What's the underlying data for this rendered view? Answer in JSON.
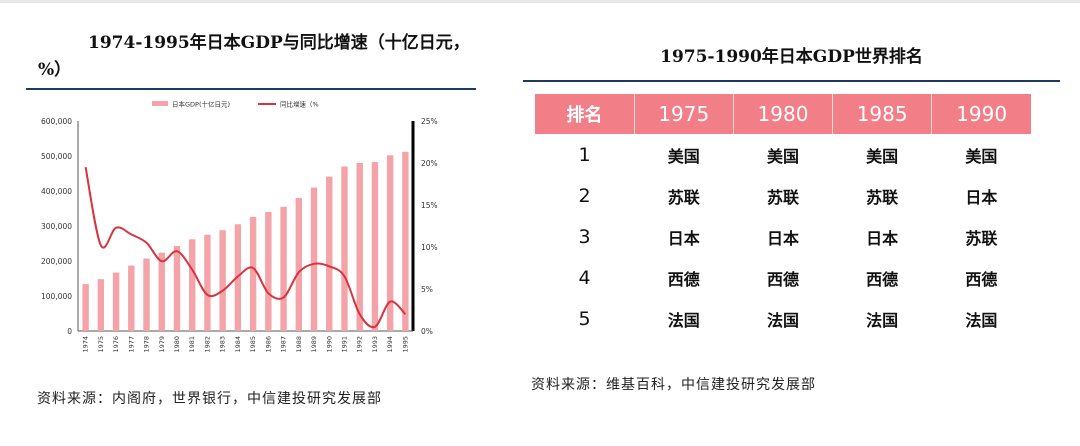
{
  "left_panel": {
    "title_line1": "1974-1995年日本GDP与同比增速（十亿日元，",
    "title_line2": "%）",
    "source": "资料来源：内阁府，世界银行，中信建投研究发展部"
  },
  "right_panel": {
    "title": "1975-1990年日本GDP世界排名",
    "header": [
      "排名",
      "1975",
      "1980",
      "1985",
      "1990"
    ],
    "rows": [
      [
        "1",
        "美国",
        "美国",
        "美国",
        "美国"
      ],
      [
        "2",
        "苏联",
        "苏联",
        "苏联",
        "日本"
      ],
      [
        "3",
        "日本",
        "日本",
        "日本",
        "苏联"
      ],
      [
        "4",
        "西德",
        "西德",
        "西德",
        "西德"
      ],
      [
        "5",
        "法国",
        "法国",
        "法国",
        "法国"
      ]
    ],
    "source": "资料来源：维基百科，中信建投研究发展部"
  },
  "colors": {
    "bar": "#f4a3a8",
    "line": "#d8343f",
    "header_bg": "#f27e88",
    "rule": "#1f3a5f"
  },
  "chart_data": {
    "type": "bar",
    "title": "1974-1995年日本GDP与同比增速（十亿日元，%）",
    "categories": [
      "1974",
      "1975",
      "1976",
      "1977",
      "1978",
      "1979",
      "1980",
      "1981",
      "1982",
      "1983",
      "1984",
      "1985",
      "1986",
      "1987",
      "1988",
      "1989",
      "1990",
      "1991",
      "1992",
      "1993",
      "1994",
      "1995"
    ],
    "series": [
      {
        "name": "日本GDP(十亿日元)",
        "type": "bar",
        "axis": "left",
        "values": [
          134000,
          148000,
          167000,
          187000,
          207000,
          224000,
          243000,
          262000,
          275000,
          288000,
          305000,
          326000,
          340000,
          355000,
          380000,
          410000,
          441000,
          470000,
          480000,
          483000,
          502000,
          512000
        ]
      },
      {
        "name": "同比增速（%",
        "type": "line",
        "axis": "right",
        "values": [
          19.5,
          10.2,
          12.3,
          11.5,
          10.5,
          8.3,
          9.5,
          7.3,
          4.3,
          4.8,
          6.5,
          7.5,
          4.5,
          4.0,
          7.0,
          8.0,
          7.7,
          6.5,
          2.0,
          0.5,
          3.5,
          2.0
        ]
      }
    ],
    "y_left": {
      "ylim": [
        0,
        600000
      ],
      "ticks": [
        "0",
        "100,000",
        "200,000",
        "300,000",
        "400,000",
        "500,000",
        "600,000"
      ]
    },
    "y_right": {
      "ylim": [
        0,
        25
      ],
      "ticks": [
        "0%",
        "5%",
        "10%",
        "15%",
        "20%",
        "25%"
      ]
    },
    "legend": "top-center",
    "grid": false
  }
}
